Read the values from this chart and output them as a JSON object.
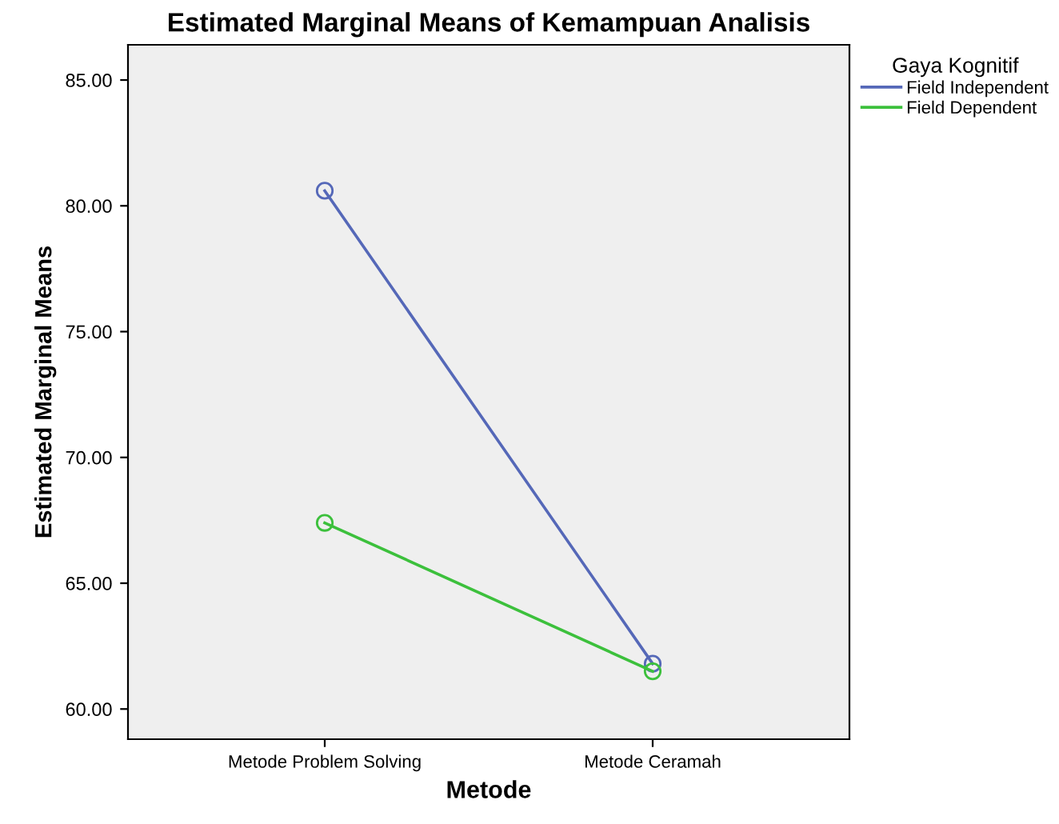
{
  "chart_data": {
    "type": "line",
    "title": "Estimated Marginal Means of Kemampuan Analisis",
    "xlabel": "Metode",
    "ylabel": "Estimated Marginal Means",
    "legend_title": "Gaya Kognitif",
    "categories": [
      "Metode Problem Solving",
      "Metode Ceramah"
    ],
    "series": [
      {
        "name": "Field Independent",
        "color": "#5568b8",
        "values": [
          80.6,
          61.8
        ]
      },
      {
        "name": "Field Dependent",
        "color": "#3cc03c",
        "values": [
          67.4,
          61.5
        ]
      }
    ],
    "ylim": [
      58.8,
      86.4
    ],
    "yticks": [
      {
        "value": 60,
        "label": "60.00"
      },
      {
        "value": 65,
        "label": "65.00"
      },
      {
        "value": 70,
        "label": "70.00"
      },
      {
        "value": 75,
        "label": "75.00"
      },
      {
        "value": 80,
        "label": "80.00"
      },
      {
        "value": 85,
        "label": "85.00"
      }
    ],
    "grid": false,
    "legend": "top right",
    "marker": "circle",
    "line_style": "solid"
  }
}
